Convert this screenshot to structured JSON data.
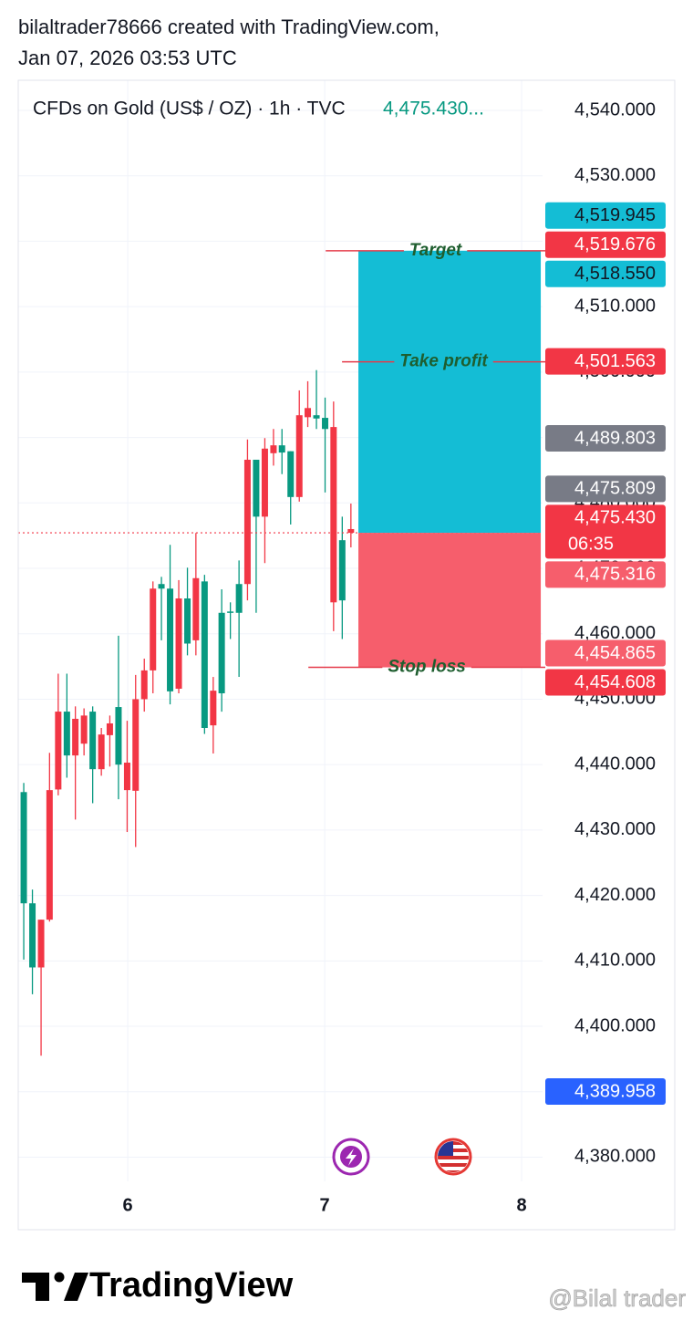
{
  "header": {
    "author_line": "bilaltrader78666 created with TradingView.com,",
    "date_line": "Jan 07, 2026 03:53 UTC"
  },
  "chart_data": {
    "type": "candlestick",
    "title": "CFDs on Gold (US$ / OZ) · 1h · TVC",
    "last_price_text": "4,475.430...",
    "x": [
      5.472,
      5.516,
      5.56,
      5.603,
      5.647,
      5.691,
      5.734,
      5.778,
      5.822,
      5.866,
      5.909,
      5.953,
      5.997,
      6.04,
      6.084,
      6.128,
      6.171,
      6.215,
      6.259,
      6.303,
      6.346,
      6.39,
      6.434,
      6.477,
      6.521,
      6.565,
      6.608,
      6.652,
      6.696,
      6.74,
      6.783,
      6.827,
      6.871,
      6.914,
      6.958,
      7.002,
      7.045,
      7.089,
      7.133
    ],
    "open": [
      4418.8,
      4409.0,
      4416.3,
      4436.1,
      4448.1,
      4441.4,
      4447.0,
      4447.5,
      4439.3,
      4444.6,
      4446.3,
      4440.0,
      4440.3,
      4450.0,
      4454.4,
      4466.9,
      4466.9,
      4451.2,
      4465.4,
      4458.5,
      4468.5,
      4445.6,
      4451.3,
      4450.9,
      4463.2,
      4463.2,
      4486.6,
      4477.9,
      4488.3,
      4488.8,
      4487.7,
      4480.9,
      4493.4,
      4494.5,
      4492.9,
      4491.3,
      4491.6,
      4465.1,
      4476.0
    ],
    "high": [
      4437.2,
      4420.9,
      4416.3,
      4441.8,
      4453.9,
      4453.9,
      4448.9,
      4448.6,
      4448.9,
      4445.6,
      4447.5,
      4459.7,
      4446.7,
      4453.7,
      4456.2,
      4468.0,
      4468.7,
      4473.6,
      4468.2,
      4470.1,
      4475.4,
      4469.0,
      4453.4,
      4466.8,
      4464.8,
      4471.2,
      4489.7,
      4486.6,
      4489.9,
      4491.3,
      4491.3,
      4487.9,
      4497.2,
      4498.6,
      4500.3,
      4496.1,
      4495.5,
      4477.9,
      4479.9
    ],
    "low": [
      4410.2,
      4404.9,
      4395.5,
      4416.0,
      4435.3,
      4438.0,
      4431.6,
      4441.4,
      4434.1,
      4438.3,
      4439.7,
      4434.7,
      4429.7,
      4427.4,
      4448.1,
      4450.9,
      4459.0,
      4449.2,
      4450.9,
      4456.7,
      4456.7,
      4444.7,
      4441.7,
      4448.1,
      4459.2,
      4453.4,
      4465.1,
      4463.2,
      4470.8,
      4485.7,
      4484.4,
      4476.7,
      4480.2,
      4491.6,
      4491.3,
      4481.6,
      4460.4,
      4459.2,
      4473.2
    ],
    "close": [
      4435.8,
      4418.8,
      4409.0,
      4416.3,
      4436.2,
      4448.1,
      4441.4,
      4443.2,
      4448.1,
      4439.3,
      4444.5,
      4448.8,
      4436.1,
      4436.0,
      4450.0,
      4454.4,
      4467.6,
      4466.9,
      4451.6,
      4465.4,
      4459.0,
      4468.0,
      4446.0,
      4463.2,
      4463.4,
      4467.6,
      4467.6,
      4486.6,
      4477.9,
      4487.6,
      4488.8,
      4487.9,
      4480.9,
      4493.1,
      4493.4,
      4493.0,
      4464.8,
      4474.3,
      4475.43
    ],
    "up_color": "#089981",
    "down_color": "#f23645",
    "xlim": [
      5.444,
      8.106
    ],
    "xticks": [
      6,
      7,
      8
    ],
    "ylim": [
      4376.3,
      4544.6
    ],
    "yticks": [
      {
        "value": 4380,
        "label": "4,380.000"
      },
      {
        "value": 4390,
        "label": "4,390.000"
      },
      {
        "value": 4400,
        "label": "4,400.000"
      },
      {
        "value": 4410,
        "label": "4,410.000"
      },
      {
        "value": 4420,
        "label": "4,420.000"
      },
      {
        "value": 4430,
        "label": "4,430.000"
      },
      {
        "value": 4440,
        "label": "4,440.000"
      },
      {
        "value": 4450,
        "label": "4,450.000"
      },
      {
        "value": 4460,
        "label": "4,460.000"
      },
      {
        "value": 4470,
        "label": "4,470.000"
      },
      {
        "value": 4480,
        "label": "4,480.000"
      },
      {
        "value": 4490,
        "label": "4,490.000"
      },
      {
        "value": 4500,
        "label": "4,500.000"
      },
      {
        "value": 4510,
        "label": "4,510.000"
      },
      {
        "value": 4520,
        "label": "4,520.000"
      },
      {
        "value": 4530,
        "label": "4,530.000"
      },
      {
        "value": 4540,
        "label": "4,540.000"
      }
    ],
    "grid": true,
    "current_price": {
      "value": 4475.43,
      "color": "#f23645"
    },
    "position": {
      "entry": 4475.43,
      "x_start": 7.171,
      "x_end": 8.097,
      "profit_color": "#14bdd5",
      "loss_color": "#f65e6c",
      "level_color": "#e53b4a",
      "levels": [
        {
          "label": "Target",
          "value": 4518.55,
          "x_start": 7.005
        },
        {
          "label": "Take profit",
          "value": 4501.563,
          "x_start": 7.088
        },
        {
          "label": "Stop loss",
          "value": 4454.865,
          "x_start": 6.917
        }
      ]
    },
    "price_tags": [
      {
        "value": 4519.945,
        "label": "4,519.945",
        "color": "#14bdd5",
        "text_color": "#131722"
      },
      {
        "value": 4519.676,
        "label": "4,519.676",
        "color": "#f23645",
        "text_color": "#ffffff"
      },
      {
        "value": 4518.55,
        "label": "4,518.550",
        "color": "#14bdd5",
        "text_color": "#131722"
      },
      {
        "value": 4501.563,
        "label": "4,501.563",
        "color": "#f23645",
        "text_color": "#ffffff"
      },
      {
        "value": 4489.803,
        "label": "4,489.803",
        "color": "#787b86",
        "text_color": "#ffffff"
      },
      {
        "value": 4475.809,
        "label": "4,475.809",
        "color": "#787b86",
        "text_color": "#ffffff"
      },
      {
        "value": 4475.43,
        "label": "4,475.430",
        "color": "#f23645",
        "text_color": "#ffffff",
        "countdown": "06:35"
      },
      {
        "value": 4475.316,
        "label": "4,475.316",
        "color": "#f65e6c",
        "text_color": "#ffffff"
      },
      {
        "value": 4454.865,
        "label": "4,454.865",
        "color": "#f65e6c",
        "text_color": "#ffffff"
      },
      {
        "value": 4454.608,
        "label": "4,454.608",
        "color": "#f23645",
        "text_color": "#ffffff"
      },
      {
        "value": 4389.958,
        "label": "4,389.958",
        "color": "#2962ff",
        "text_color": "#ffffff"
      }
    ]
  },
  "footer": {
    "brand": "TradingView",
    "watermark": "@Bilal trader"
  }
}
